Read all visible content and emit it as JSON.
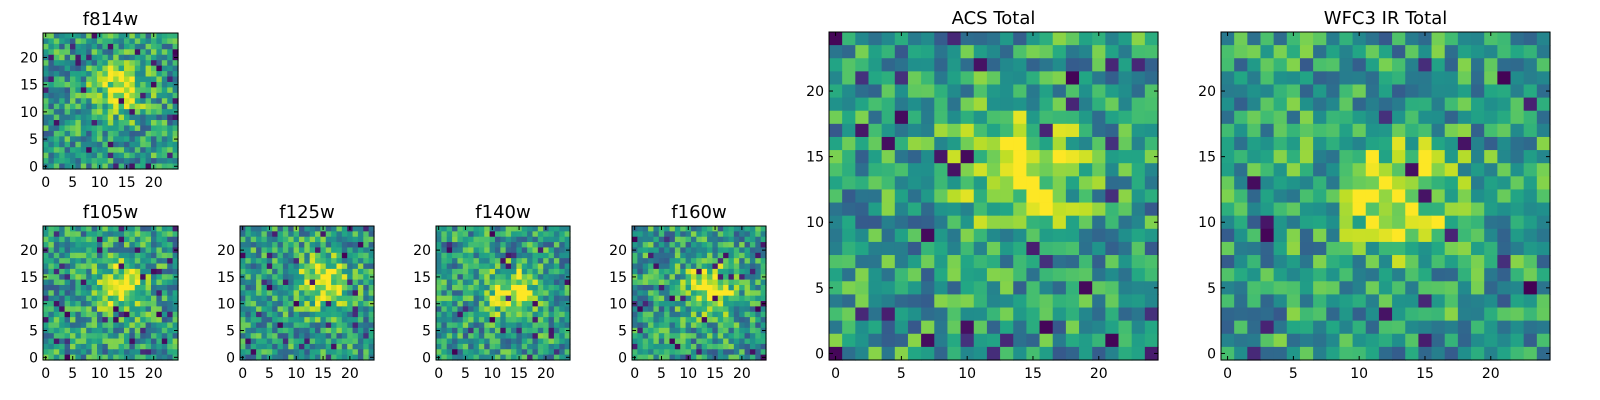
{
  "chart_data": [
    {
      "type": "heatmap",
      "title": "f814w",
      "grid_size": 25,
      "xticks": [
        0,
        5,
        10,
        15,
        20
      ],
      "yticks": [
        0,
        5,
        10,
        15,
        20
      ],
      "xlim": [
        -0.5,
        24.5
      ],
      "ylim": [
        -0.5,
        24.5
      ],
      "colormap": "viridis",
      "source": {
        "x": 14,
        "y": 14
      },
      "grid": false
    },
    {
      "type": "heatmap",
      "title": "f105w",
      "grid_size": 25,
      "xticks": [
        0,
        5,
        10,
        15,
        20
      ],
      "yticks": [
        0,
        5,
        10,
        15,
        20
      ],
      "xlim": [
        -0.5,
        24.5
      ],
      "ylim": [
        -0.5,
        24.5
      ],
      "colormap": "viridis",
      "source": {
        "x": 14,
        "y": 13
      },
      "grid": false
    },
    {
      "type": "heatmap",
      "title": "f125w",
      "grid_size": 25,
      "xticks": [
        0,
        5,
        10,
        15,
        20
      ],
      "yticks": [
        0,
        5,
        10,
        15,
        20
      ],
      "xlim": [
        -0.5,
        24.5
      ],
      "ylim": [
        -0.5,
        24.5
      ],
      "colormap": "viridis",
      "source": {
        "x": 15,
        "y": 14
      },
      "grid": false
    },
    {
      "type": "heatmap",
      "title": "f140w",
      "grid_size": 25,
      "xticks": [
        0,
        5,
        10,
        15,
        20
      ],
      "yticks": [
        0,
        5,
        10,
        15,
        20
      ],
      "xlim": [
        -0.5,
        24.5
      ],
      "ylim": [
        -0.5,
        24.5
      ],
      "colormap": "viridis",
      "source": {
        "x": 14,
        "y": 12
      },
      "grid": false
    },
    {
      "type": "heatmap",
      "title": "f160w",
      "grid_size": 25,
      "xticks": [
        0,
        5,
        10,
        15,
        20
      ],
      "yticks": [
        0,
        5,
        10,
        15,
        20
      ],
      "xlim": [
        -0.5,
        24.5
      ],
      "ylim": [
        -0.5,
        24.5
      ],
      "colormap": "viridis",
      "source": {
        "x": 14,
        "y": 13
      },
      "grid": false
    },
    {
      "type": "heatmap",
      "title": "ACS Total",
      "grid_size": 25,
      "xticks": [
        0,
        5,
        10,
        15,
        20
      ],
      "yticks": [
        0,
        5,
        10,
        15,
        20
      ],
      "xlim": [
        -0.5,
        24.5
      ],
      "ylim": [
        -0.5,
        24.5
      ],
      "colormap": "viridis",
      "source": {
        "x": 14,
        "y": 14
      },
      "grid": false
    },
    {
      "type": "heatmap",
      "title": "WFC3 IR Total",
      "grid_size": 25,
      "xticks": [
        0,
        5,
        10,
        15,
        20
      ],
      "yticks": [
        0,
        5,
        10,
        15,
        20
      ],
      "xlim": [
        -0.5,
        24.5
      ],
      "ylim": [
        -0.5,
        24.5
      ],
      "colormap": "viridis",
      "source": {
        "x": 13,
        "y": 12
      },
      "grid": false
    }
  ],
  "colors": {
    "background": "#ffffff",
    "axes": "#000000"
  }
}
